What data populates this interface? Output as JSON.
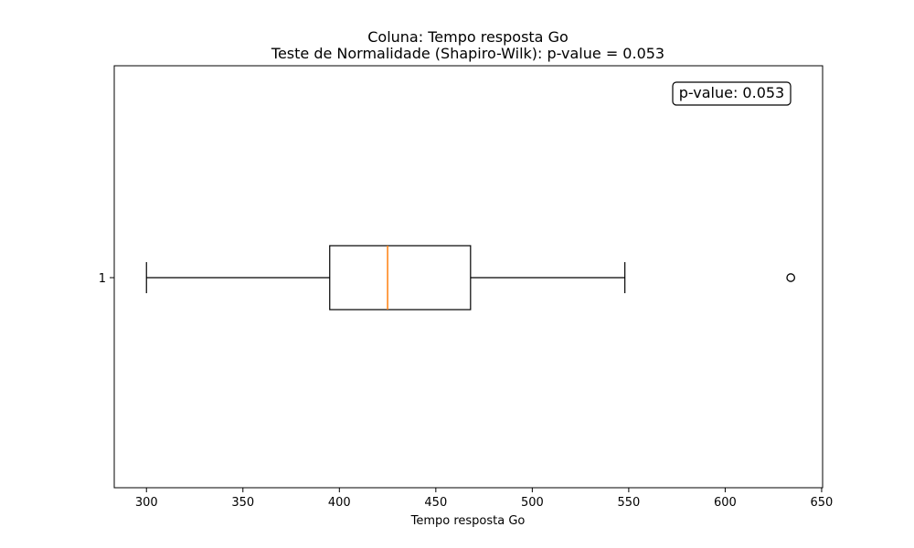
{
  "chart_data": {
    "type": "boxplot",
    "orientation": "horizontal",
    "title": "Coluna: Tempo resposta Go",
    "subtitle": "Teste de Normalidade (Shapiro-Wilk): p-value = 0.053",
    "xlabel": "Tempo resposta Go",
    "ylabel": "",
    "xlim": [
      283.3,
      650.5
    ],
    "xticks": [
      300,
      350,
      400,
      450,
      500,
      550,
      600,
      650
    ],
    "yticks": [
      "1"
    ],
    "grid": false,
    "annotation": {
      "text": "p-value: 0.053",
      "placement": "top-right"
    },
    "box": {
      "whisker_low": 300,
      "q1": 395,
      "median": 425,
      "q3": 468,
      "whisker_high": 548,
      "outliers": [
        634
      ]
    },
    "colors": {
      "median": "#ff7f0e",
      "box": "#000000",
      "background": "#ffffff"
    }
  }
}
